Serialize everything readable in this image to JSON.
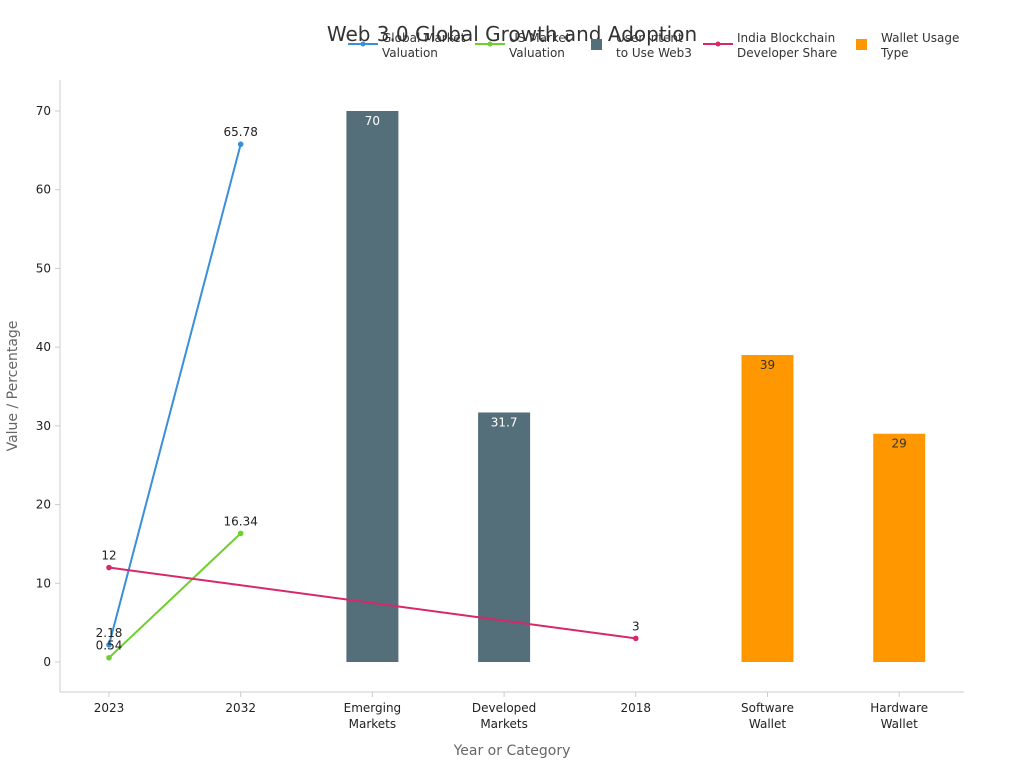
{
  "chart_data": {
    "type": "bar",
    "title": "Web 3.0 Global Growth and Adoption",
    "xlabel": "Year or Category",
    "ylabel": "Value / Percentage",
    "ylim": [
      -3.5,
      73.5
    ],
    "yticks": [
      0,
      10,
      20,
      30,
      40,
      50,
      60,
      70
    ],
    "grid": false,
    "legend_position": "top-right",
    "categories": [
      [
        "2023"
      ],
      [
        "2032"
      ],
      [
        "Emerging",
        "Markets"
      ],
      [
        "Developed",
        "Markets"
      ],
      [
        "2018"
      ],
      [
        "Software",
        "Wallet"
      ],
      [
        "Hardware",
        "Wallet"
      ]
    ],
    "series": [
      {
        "name": [
          "Global Market",
          "Valuation"
        ],
        "kind": "line",
        "color": "#3a8fd9",
        "points": [
          {
            "x": "2023",
            "y": 2.18
          },
          {
            "x": "2032",
            "y": 65.78
          }
        ]
      },
      {
        "name": [
          "US Market",
          "Valuation"
        ],
        "kind": "line",
        "color": "#6fcf2e",
        "points": [
          {
            "x": "2023",
            "y": 0.54
          },
          {
            "x": "2032",
            "y": 16.34
          }
        ]
      },
      {
        "name": [
          "User Intent",
          "to Use Web3"
        ],
        "kind": "bar",
        "color": "#546e7a",
        "label_color": "#ffffff",
        "points": [
          {
            "x": "Emerging Markets",
            "y": 70
          },
          {
            "x": "Developed Markets",
            "y": 31.7
          }
        ]
      },
      {
        "name": [
          "India Blockchain",
          "Developer Share"
        ],
        "kind": "line",
        "color": "#d6286a",
        "points": [
          {
            "x": "2023",
            "y": 12
          },
          {
            "x": "2018",
            "y": 3
          }
        ]
      },
      {
        "name": [
          "Wallet Usage",
          "Type"
        ],
        "kind": "bar",
        "color": "#ff9800",
        "label_color": "#333333",
        "points": [
          {
            "x": "Software Wallet",
            "y": 39
          },
          {
            "x": "Hardware Wallet",
            "y": 29
          }
        ]
      }
    ]
  }
}
